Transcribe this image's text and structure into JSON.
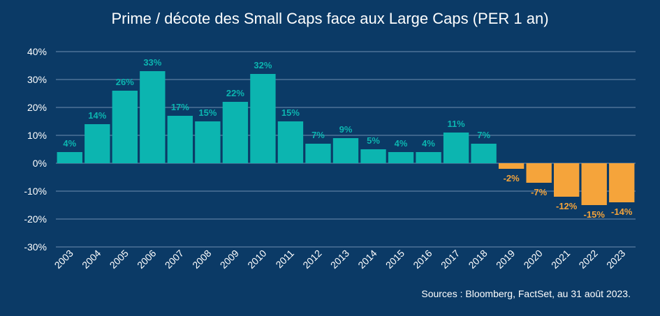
{
  "chart_data": {
    "type": "bar",
    "title": "Prime / décote des Small Caps face aux Large Caps (PER 1 an)",
    "source": "Sources : Bloomberg, FactSet, au 31 août 2023.",
    "categories": [
      "2003",
      "2004",
      "2005",
      "2006",
      "2007",
      "2008",
      "2009",
      "2010",
      "2011",
      "2012",
      "2013",
      "2014",
      "2015",
      "2016",
      "2017",
      "2018",
      "2019",
      "2020",
      "2021",
      "2022",
      "2023"
    ],
    "values": [
      4,
      14,
      26,
      33,
      17,
      15,
      22,
      32,
      15,
      7,
      9,
      5,
      4,
      4,
      11,
      7,
      -2,
      -7,
      -12,
      -15,
      -14
    ],
    "value_labels": [
      "4%",
      "14%",
      "26%",
      "33%",
      "17%",
      "15%",
      "22%",
      "32%",
      "15%",
      "7%",
      "9%",
      "5%",
      "4%",
      "4%",
      "11%",
      "7%",
      "-2%",
      "-7%",
      "-12%",
      "-15%",
      "-14%"
    ],
    "ylim": [
      -30,
      40
    ],
    "yticks": [
      40,
      30,
      20,
      10,
      0,
      -10,
      -20,
      -30
    ],
    "ytick_labels": [
      "40%",
      "30%",
      "20%",
      "10%",
      "0%",
      "-10%",
      "-20%",
      "-30%"
    ],
    "xlabel": "",
    "ylabel": "",
    "grid": true,
    "colors": {
      "background": "#0b3a66",
      "positive": "#0cb5b0",
      "negative": "#f5a43b",
      "text": "#ffffff",
      "grid": "#6f8db0"
    }
  }
}
